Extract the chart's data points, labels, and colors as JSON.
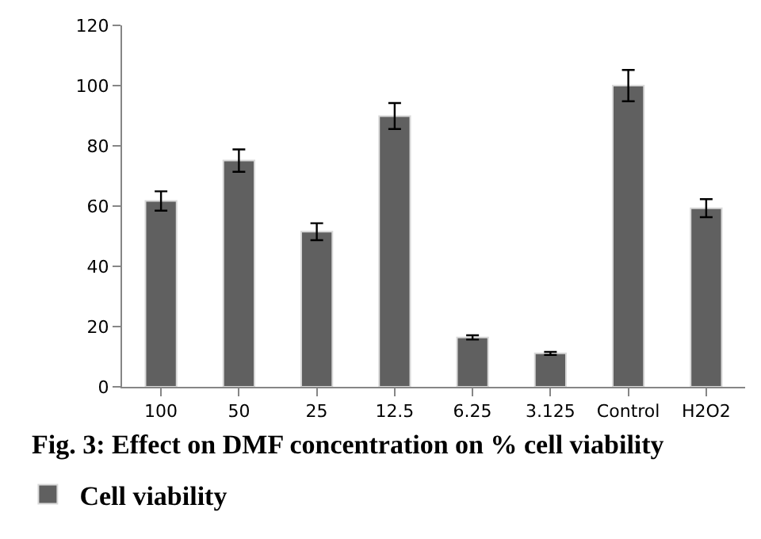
{
  "chart_data": {
    "type": "bar",
    "title": "Fig. 3: Effect on DMF concentration on % cell viability",
    "categories": [
      "100",
      "50",
      "25",
      "12.5",
      "6.25",
      "3.125",
      "Control",
      "H2O2"
    ],
    "series": [
      {
        "name": "Cell viability",
        "color": "#606060",
        "values": [
          61.7,
          75.1,
          51.5,
          89.9,
          16.4,
          11.1,
          100,
          59.3
        ],
        "errors": [
          3.2,
          3.7,
          2.8,
          4.3,
          0.7,
          0.5,
          5.2,
          3
        ]
      }
    ],
    "ylim": [
      0,
      120
    ],
    "yticks": [
      0,
      20,
      40,
      60,
      80,
      100,
      120
    ],
    "legend": "bottom"
  }
}
